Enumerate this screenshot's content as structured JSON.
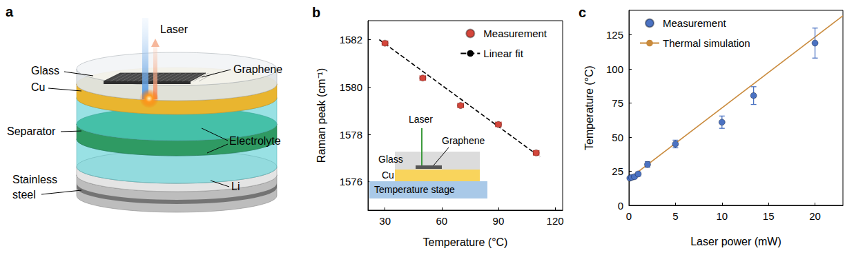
{
  "diagram": {
    "panel": "a",
    "labels": {
      "laser": "Laser",
      "glass": "Glass",
      "graphene": "Graphene",
      "cu": "Cu",
      "separator": "Separator",
      "electrolyte": "Electrolyte",
      "stainless_steel": [
        "Stainless",
        "steel"
      ],
      "li": "Li"
    }
  },
  "chart_data": [
    {
      "panel": "b",
      "type": "scatter",
      "x_label": "Temperature (°C)",
      "y_label": "Raman peak (cm⁻¹)",
      "xlim": [
        21,
        124
      ],
      "xticks": [
        30,
        60,
        90,
        120
      ],
      "ylim": [
        1574.8,
        1582.8
      ],
      "yticks": [
        1576,
        1578,
        1580,
        1582
      ],
      "grid": false,
      "legend": "upper right",
      "series": [
        {
          "name": "Measurement",
          "type": "scatter",
          "color": "#d4463b",
          "marker": "circle",
          "x": [
            30,
            50,
            70,
            90,
            110
          ],
          "values": [
            1581.85,
            1580.38,
            1579.22,
            1578.42,
            1577.22
          ],
          "x_err": [
            1.5,
            1.5,
            1.5,
            1.5,
            1.5
          ],
          "y_err": [
            0.06,
            0.07,
            0.06,
            0.08,
            0.09
          ]
        },
        {
          "name": "Linear fit",
          "type": "line",
          "color": "#000000",
          "line_style": "dashed",
          "x": [
            27,
            112
          ],
          "values": [
            1582.0,
            1577.05
          ]
        }
      ],
      "inset": {
        "laser": "Laser",
        "graphene": "Graphene",
        "glass": "Glass",
        "cu": "Cu",
        "stage": "Temperature stage"
      }
    },
    {
      "panel": "c",
      "type": "scatter",
      "x_label": "Laser power (mW)",
      "y_label": "Temperature (°C)",
      "xlim": [
        0,
        23
      ],
      "xticks": [
        0,
        5,
        10,
        15,
        20
      ],
      "ylim": [
        0,
        143
      ],
      "yticks": [
        0,
        25,
        50,
        75,
        100,
        125
      ],
      "grid": false,
      "legend": "upper left",
      "series": [
        {
          "name": "Measurement",
          "type": "scatter",
          "color": "#4b72c2",
          "marker": "circle",
          "x": [
            0.1,
            0.3,
            0.6,
            1,
            2,
            5,
            10,
            13.4,
            20
          ],
          "values": [
            20,
            20.5,
            21,
            23,
            30,
            45,
            61,
            80.5,
            119
          ],
          "y_err": [
            1,
            1,
            1.2,
            1.5,
            2,
            2.8,
            4.5,
            6.5,
            11
          ]
        },
        {
          "name": "Thermal simulation",
          "type": "line",
          "color": "#c98a3c",
          "line_style": "solid",
          "x": [
            0,
            23
          ],
          "values": [
            19.5,
            139
          ]
        }
      ]
    }
  ]
}
